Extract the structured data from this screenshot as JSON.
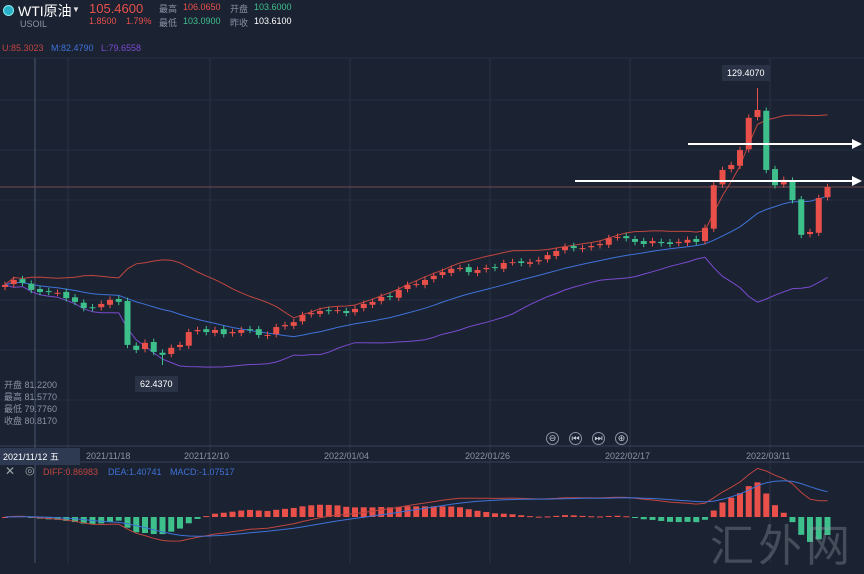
{
  "header": {
    "title": "WTI原油",
    "symbol": "USOIL",
    "price": "105.4600",
    "change": "1.8500",
    "change_pct": "1.79%",
    "high_label": "最高",
    "high": "106.0650",
    "open_label": "开盘",
    "open": "103.6000",
    "low_label": "最低",
    "low": "103.0900",
    "prev_label": "昨收",
    "prev_close": "103.6100"
  },
  "bands_legend": {
    "upper": "U:85.3023",
    "mid": "M:82.4790",
    "lower": "L:79.6558"
  },
  "crosshair": {
    "date": "2021/11/12 五",
    "open": "开盘 81.2200",
    "high": "最高 81.5770",
    "low": "最低 79.7760",
    "close": "收盘 80.8170"
  },
  "labels": {
    "max": "129.4070",
    "min": "62.4370"
  },
  "macd_legend": {
    "diff": "DIFF:0.86983",
    "dea": "DEA:1.40741",
    "macd": "MACD:-1.07517"
  },
  "nav": [
    "⊖",
    "⏮",
    "⏭",
    "⊕"
  ],
  "watermark": "汇外网",
  "colors": {
    "up": "#e9504a",
    "down": "#3ec08d",
    "upper": "#c0463f",
    "mid": "#3f73d8",
    "lower": "#7b4bd0",
    "bg": "#1b2232"
  },
  "chart_data": {
    "type": "candlestick",
    "x_tick_labels": [
      "2021/11/18",
      "2021/12/10",
      "2022/01/04",
      "2022/01/26",
      "2022/02/17",
      "2022/03/11"
    ],
    "ylim": [
      62.437,
      129.407
    ],
    "max_high": 129.407,
    "min_low": 62.437,
    "indicators": [
      "Bollinger(U,M,L)",
      "MACD(DIFF,DEA,MACD)"
    ],
    "closes": [
      81.8,
      83.0,
      82.3,
      80.6,
      80.1,
      80.1,
      79.9,
      78.6,
      77.7,
      76.2,
      76.2,
      77.2,
      78.2,
      77.7,
      67.3,
      66.1,
      67.8,
      65.6,
      64.9,
      66.6,
      67.3,
      70.4,
      70.9,
      70.4,
      70.9,
      69.9,
      70.4,
      70.9,
      70.9,
      69.7,
      69.7,
      71.6,
      72.1,
      72.8,
      74.5,
      75.0,
      75.5,
      75.5,
      75.7,
      75.0,
      76.0,
      77.2,
      77.7,
      78.9,
      78.9,
      80.6,
      81.8,
      82.0,
      83.0,
      84.0,
      84.9,
      85.7,
      85.9,
      84.9,
      85.4,
      85.9,
      85.9,
      87.1,
      87.3,
      87.1,
      87.3,
      87.8,
      89.0,
      90.0,
      91.0,
      90.7,
      90.7,
      91.2,
      91.7,
      93.1,
      93.4,
      93.1,
      92.2,
      91.7,
      92.4,
      91.9,
      91.7,
      92.2,
      92.7,
      92.2,
      95.6,
      105.9,
      109.6,
      110.8,
      114.4,
      122.2,
      124.1,
      109.6,
      105.9,
      107.2,
      102.3,
      93.9,
      94.6,
      102.8,
      105.46
    ]
  }
}
